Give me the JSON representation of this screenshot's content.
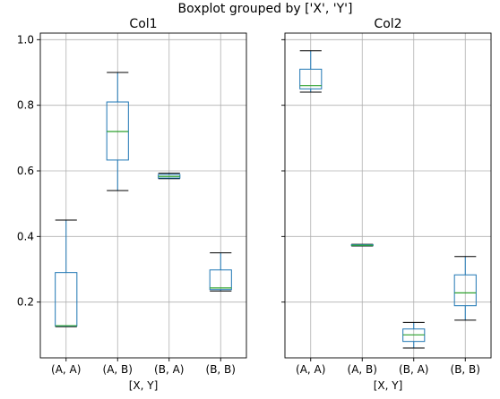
{
  "chart_data": {
    "type": "boxplot",
    "suptitle": "Boxplot grouped by ['X', 'Y']",
    "ylim": [
      0.03,
      1.02
    ],
    "yticks": [
      "0.2",
      "0.4",
      "0.6",
      "0.8",
      "1.0"
    ],
    "grid": true,
    "colors": {
      "box": "#1f77b4",
      "median": "#2ca02c",
      "whisker": "#000000",
      "grid": "#b0b0b0"
    },
    "categories": [
      "(A, A)",
      "(A, B)",
      "(B, A)",
      "(B, B)"
    ],
    "panels": [
      {
        "title": "Col1",
        "xlabel": "[X, Y]",
        "boxes": [
          {
            "category": "(A, A)",
            "whislo": 0.125,
            "q1": 0.127,
            "med": 0.128,
            "q3": 0.29,
            "whishi": 0.45
          },
          {
            "category": "(A, B)",
            "whislo": 0.54,
            "q1": 0.633,
            "med": 0.72,
            "q3": 0.81,
            "whishi": 0.9
          },
          {
            "category": "(B, A)",
            "whislo": 0.576,
            "q1": 0.578,
            "med": 0.583,
            "q3": 0.589,
            "whishi": 0.593
          },
          {
            "category": "(B, B)",
            "whislo": 0.234,
            "q1": 0.238,
            "med": 0.243,
            "q3": 0.298,
            "whishi": 0.35
          }
        ]
      },
      {
        "title": "Col2",
        "xlabel": "[X, Y]",
        "boxes": [
          {
            "category": "(A, A)",
            "whislo": 0.84,
            "q1": 0.85,
            "med": 0.86,
            "q3": 0.91,
            "whishi": 0.966
          },
          {
            "category": "(A, B)",
            "whislo": 0.371,
            "q1": 0.372,
            "med": 0.373,
            "q3": 0.375,
            "whishi": 0.376
          },
          {
            "category": "(B, A)",
            "whislo": 0.06,
            "q1": 0.08,
            "med": 0.1,
            "q3": 0.118,
            "whishi": 0.138
          },
          {
            "category": "(B, B)",
            "whislo": 0.145,
            "q1": 0.189,
            "med": 0.228,
            "q3": 0.283,
            "whishi": 0.339
          }
        ]
      }
    ]
  }
}
